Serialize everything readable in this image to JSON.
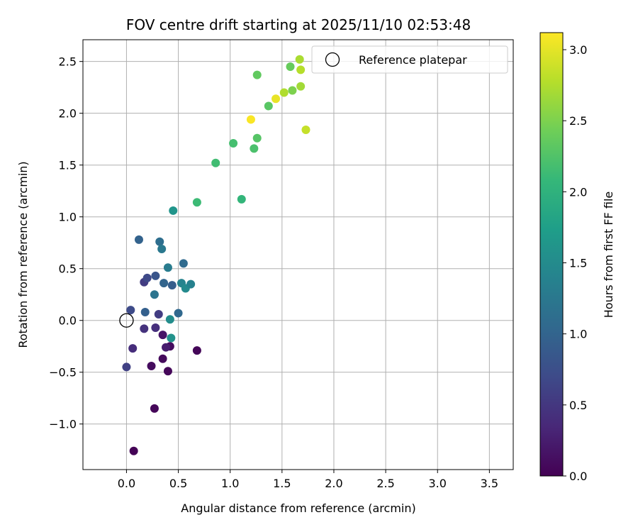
{
  "chart_data": {
    "type": "scatter",
    "title": "FOV centre drift starting at 2025/11/10 02:53:48",
    "xlabel": "Angular distance from reference (arcmin)",
    "ylabel": "Rotation from reference (arcmin)",
    "xlim": [
      -0.42,
      3.73
    ],
    "ylim": [
      -1.44,
      2.71
    ],
    "xticks": [
      0.0,
      0.5,
      1.0,
      1.5,
      2.0,
      2.5,
      3.0,
      3.5
    ],
    "xtick_labels": [
      "0.0",
      "0.5",
      "1.0",
      "1.5",
      "2.0",
      "2.5",
      "3.0",
      "3.5"
    ],
    "yticks": [
      -1.0,
      -0.5,
      0.0,
      0.5,
      1.0,
      1.5,
      2.0,
      2.5
    ],
    "ytick_labels": [
      "−1.0",
      "−0.5",
      "0.0",
      "0.5",
      "1.0",
      "1.5",
      "2.0",
      "2.5"
    ],
    "grid": true,
    "legend": {
      "position": "top-right",
      "entries": [
        "Reference platepar"
      ]
    },
    "reference_point": {
      "x": 0.0,
      "y": 0.0,
      "label": "Reference platepar"
    },
    "colorbar": {
      "label": "Hours from first FF file",
      "colormap": "viridis",
      "range": [
        0.0,
        3.12
      ],
      "ticks": [
        0.0,
        0.5,
        1.0,
        1.5,
        2.0,
        2.5,
        3.0
      ],
      "tick_labels": [
        "0.0",
        "0.5",
        "1.0",
        "1.5",
        "2.0",
        "2.5",
        "3.0"
      ]
    },
    "points": [
      {
        "x": 0.07,
        "y": -1.26,
        "c": 0.02
      },
      {
        "x": 0.27,
        "y": -0.85,
        "c": 0.05
      },
      {
        "x": 0.4,
        "y": -0.49,
        "c": 0.05
      },
      {
        "x": 0.24,
        "y": -0.44,
        "c": 0.1
      },
      {
        "x": 0.35,
        "y": -0.37,
        "c": 0.08
      },
      {
        "x": 0.68,
        "y": -0.29,
        "c": 0.04
      },
      {
        "x": 0.42,
        "y": -0.25,
        "c": 0.1
      },
      {
        "x": 0.38,
        "y": -0.26,
        "c": 0.25
      },
      {
        "x": 0.06,
        "y": -0.27,
        "c": 0.4
      },
      {
        "x": 0.0,
        "y": -0.45,
        "c": 0.6
      },
      {
        "x": 0.35,
        "y": -0.14,
        "c": 0.18
      },
      {
        "x": 0.43,
        "y": -0.17,
        "c": 1.58
      },
      {
        "x": 0.17,
        "y": -0.08,
        "c": 0.45
      },
      {
        "x": 0.28,
        "y": -0.07,
        "c": 0.42
      },
      {
        "x": 0.42,
        "y": 0.01,
        "c": 1.52
      },
      {
        "x": 0.31,
        "y": 0.06,
        "c": 0.55
      },
      {
        "x": 0.5,
        "y": 0.07,
        "c": 1.05
      },
      {
        "x": 0.04,
        "y": 0.1,
        "c": 0.7
      },
      {
        "x": 0.18,
        "y": 0.08,
        "c": 0.95
      },
      {
        "x": 0.27,
        "y": 0.25,
        "c": 1.2
      },
      {
        "x": 0.17,
        "y": 0.37,
        "c": 0.55
      },
      {
        "x": 0.2,
        "y": 0.41,
        "c": 0.68
      },
      {
        "x": 0.28,
        "y": 0.43,
        "c": 0.82
      },
      {
        "x": 0.36,
        "y": 0.36,
        "c": 1.0
      },
      {
        "x": 0.44,
        "y": 0.34,
        "c": 0.92
      },
      {
        "x": 0.53,
        "y": 0.36,
        "c": 1.4
      },
      {
        "x": 0.57,
        "y": 0.31,
        "c": 1.48
      },
      {
        "x": 0.62,
        "y": 0.35,
        "c": 1.38
      },
      {
        "x": 0.4,
        "y": 0.51,
        "c": 1.3
      },
      {
        "x": 0.55,
        "y": 0.55,
        "c": 1.08
      },
      {
        "x": 0.12,
        "y": 0.78,
        "c": 0.98
      },
      {
        "x": 0.32,
        "y": 0.76,
        "c": 1.12
      },
      {
        "x": 0.34,
        "y": 0.69,
        "c": 1.25
      },
      {
        "x": 0.45,
        "y": 1.06,
        "c": 1.62
      },
      {
        "x": 0.68,
        "y": 1.14,
        "c": 2.12
      },
      {
        "x": 1.11,
        "y": 1.17,
        "c": 2.05
      },
      {
        "x": 0.86,
        "y": 1.52,
        "c": 2.15
      },
      {
        "x": 1.03,
        "y": 1.71,
        "c": 2.18
      },
      {
        "x": 1.23,
        "y": 1.66,
        "c": 2.22
      },
      {
        "x": 1.26,
        "y": 1.76,
        "c": 2.28
      },
      {
        "x": 1.37,
        "y": 2.07,
        "c": 2.3
      },
      {
        "x": 1.26,
        "y": 2.37,
        "c": 2.35
      },
      {
        "x": 1.2,
        "y": 1.94,
        "c": 3.1
      },
      {
        "x": 1.44,
        "y": 2.14,
        "c": 3.02
      },
      {
        "x": 1.52,
        "y": 2.2,
        "c": 2.75
      },
      {
        "x": 1.6,
        "y": 2.22,
        "c": 2.5
      },
      {
        "x": 1.58,
        "y": 2.45,
        "c": 2.38
      },
      {
        "x": 1.68,
        "y": 2.26,
        "c": 2.68
      },
      {
        "x": 1.68,
        "y": 2.42,
        "c": 2.78
      },
      {
        "x": 1.67,
        "y": 2.52,
        "c": 2.72
      },
      {
        "x": 1.73,
        "y": 1.84,
        "c": 2.85
      }
    ]
  }
}
